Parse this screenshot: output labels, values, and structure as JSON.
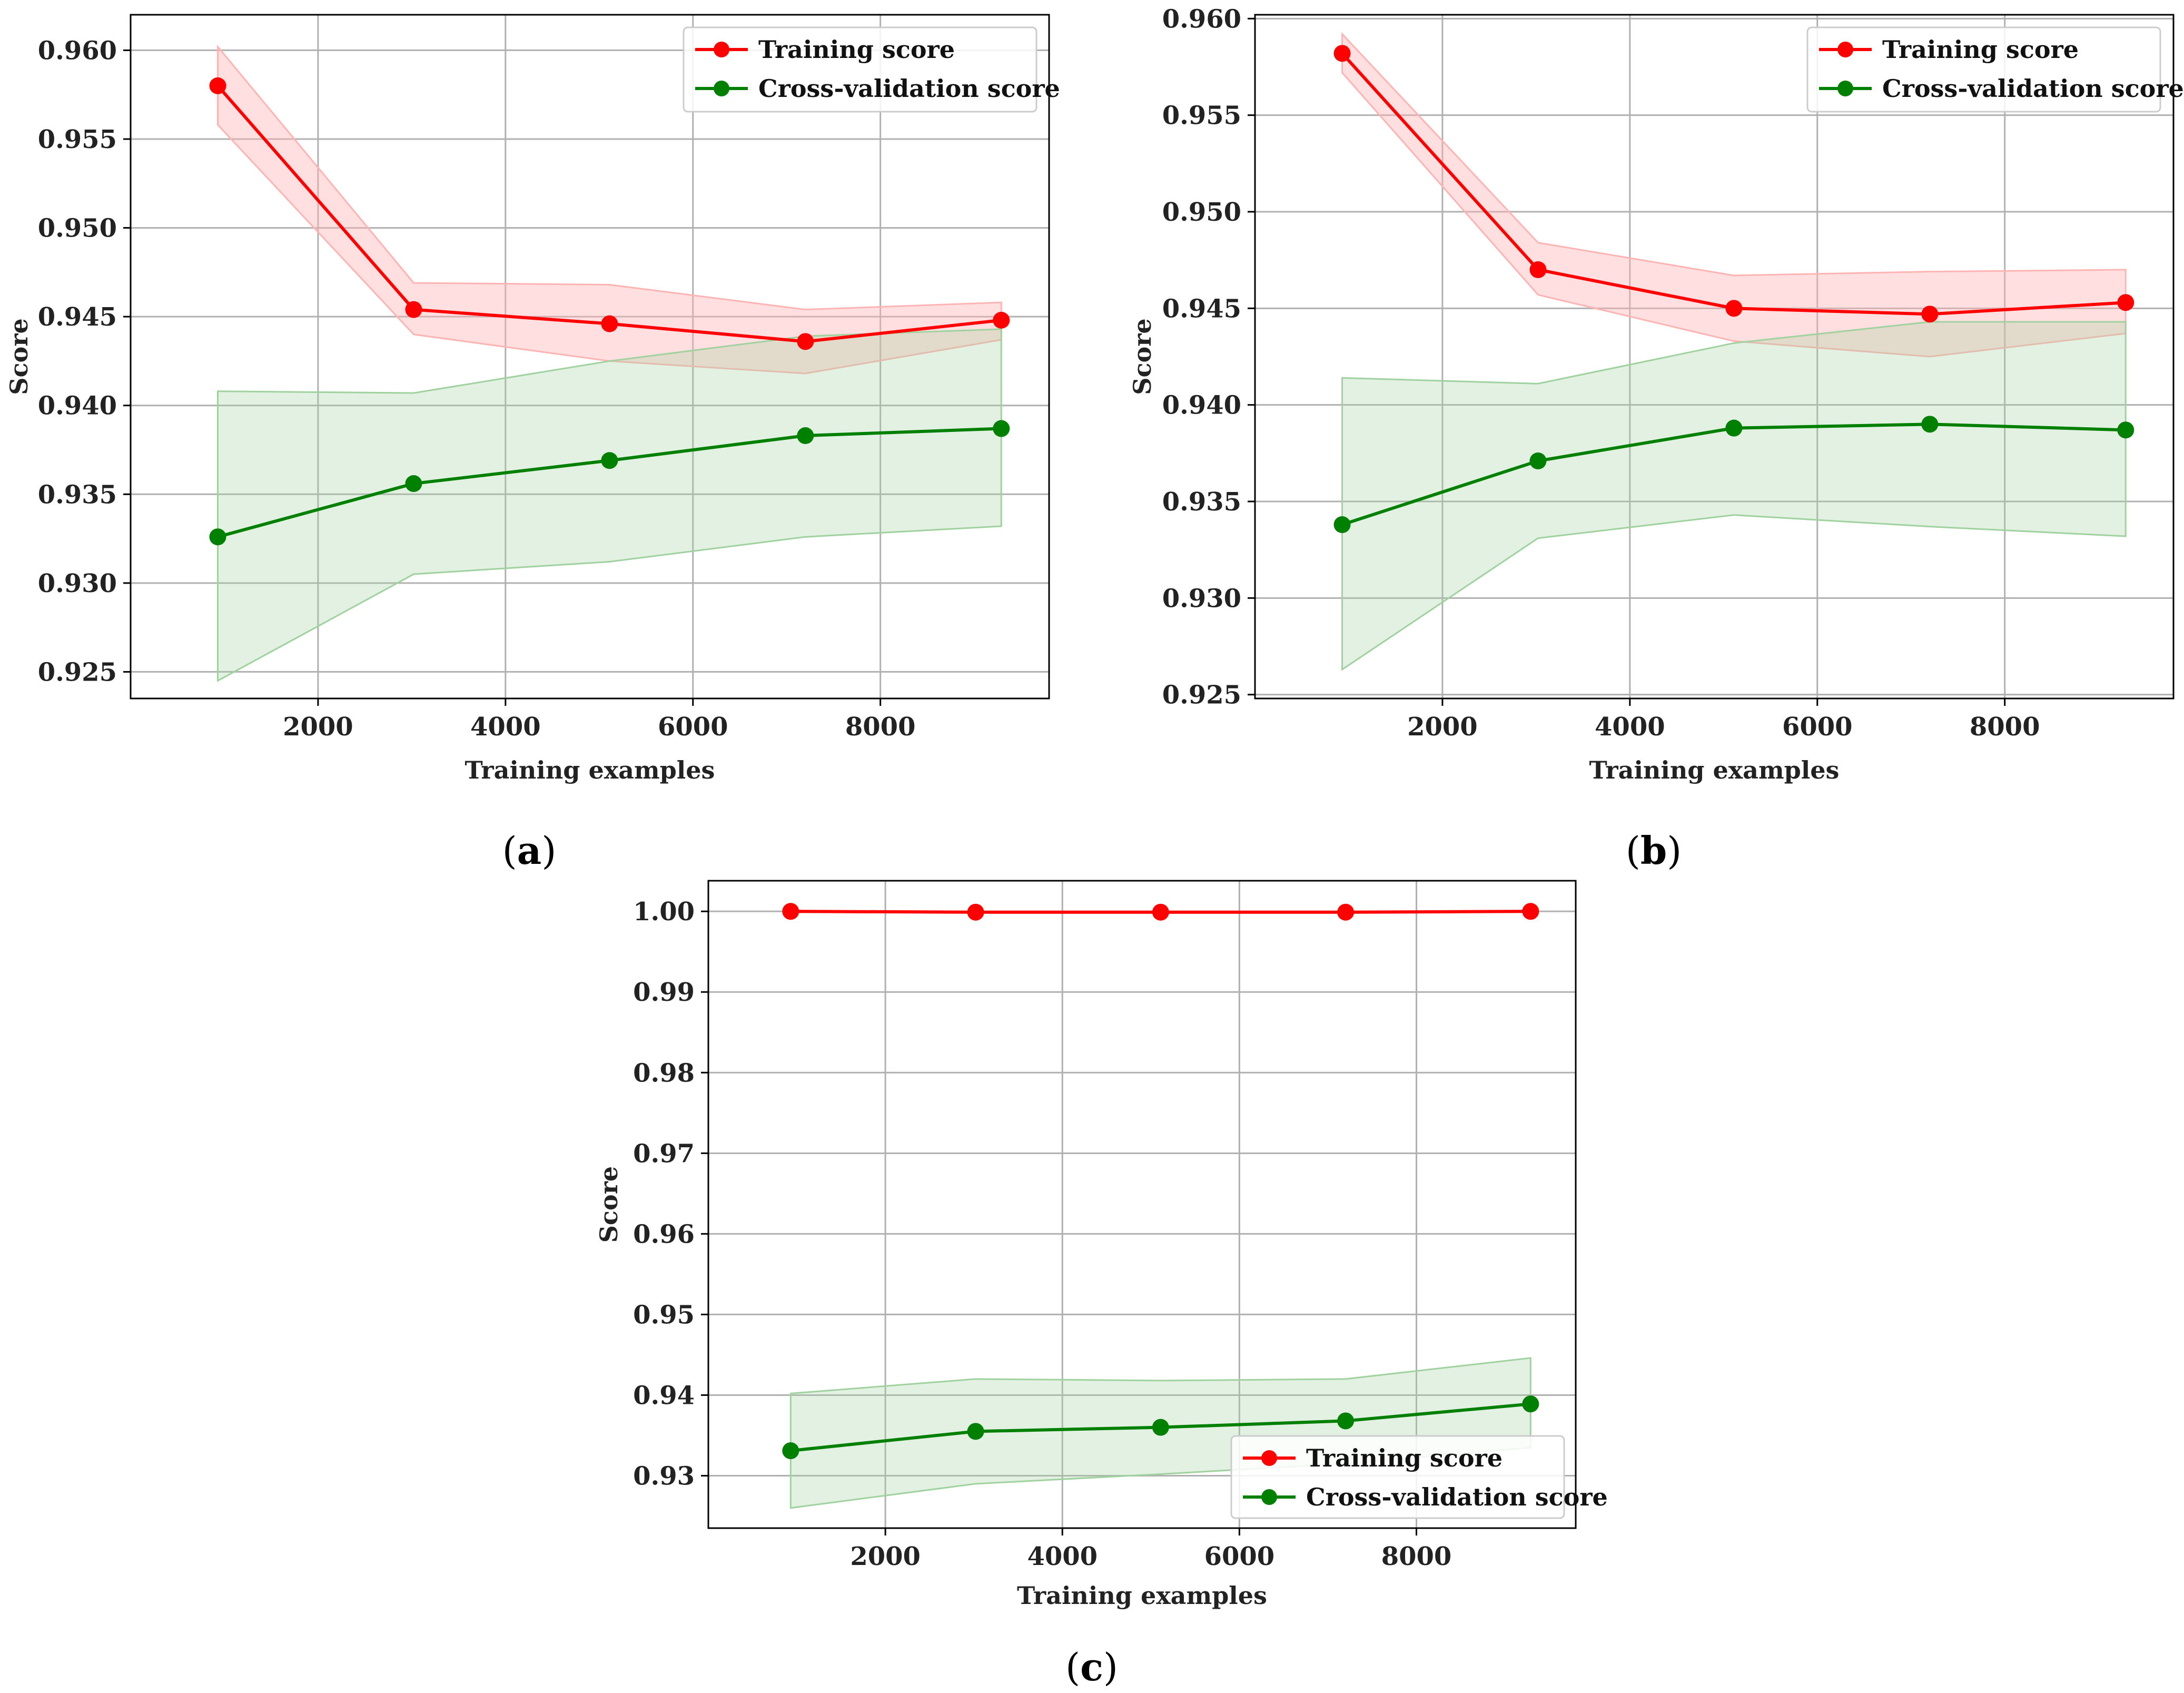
{
  "colors": {
    "training": "#ff0000",
    "training_fill": "#ffb3b3",
    "cv": "#008000",
    "cv_fill": "#9fd29f",
    "grid": "#b0b0b0",
    "axis": "#000000"
  },
  "chart_data": [
    {
      "type": "line",
      "panel": "a",
      "caption_letter": "a",
      "xlabel": "Training examples",
      "ylabel": "Score",
      "xlim": [
        0,
        9800
      ],
      "ylim": [
        0.9235,
        0.962
      ],
      "xticks": [
        2000,
        4000,
        6000,
        8000
      ],
      "xtick_labels": [
        "2000",
        "4000",
        "6000",
        "8000"
      ],
      "yticks": [
        0.925,
        0.93,
        0.935,
        0.94,
        0.945,
        0.95,
        0.955,
        0.96
      ],
      "ytick_labels": [
        "0.925",
        "0.930",
        "0.935",
        "0.940",
        "0.945",
        "0.950",
        "0.955",
        "0.960"
      ],
      "grid": true,
      "legend_position": "top-right",
      "x": [
        930,
        3020,
        5110,
        7200,
        9290
      ],
      "series": [
        {
          "name": "Training score",
          "key": "training",
          "values": [
            0.958,
            0.9454,
            0.9446,
            0.9436,
            0.9448
          ],
          "lower": [
            0.9558,
            0.944,
            0.9425,
            0.9418,
            0.9437
          ],
          "upper": [
            0.9602,
            0.9469,
            0.9468,
            0.9454,
            0.9458
          ]
        },
        {
          "name": "Cross-validation score",
          "key": "cv",
          "values": [
            0.9326,
            0.9356,
            0.9369,
            0.9383,
            0.9387
          ],
          "lower": [
            0.9245,
            0.9305,
            0.9312,
            0.9326,
            0.9332
          ],
          "upper": [
            0.9408,
            0.9407,
            0.9425,
            0.9439,
            0.9443
          ]
        }
      ]
    },
    {
      "type": "line",
      "panel": "b",
      "caption_letter": "b",
      "xlabel": "Training examples",
      "ylabel": "Score",
      "xlim": [
        0,
        9800
      ],
      "ylim": [
        0.9248,
        0.9602
      ],
      "xticks": [
        2000,
        4000,
        6000,
        8000
      ],
      "xtick_labels": [
        "2000",
        "4000",
        "6000",
        "8000"
      ],
      "yticks": [
        0.925,
        0.93,
        0.935,
        0.94,
        0.945,
        0.95,
        0.955,
        0.96
      ],
      "ytick_labels": [
        "0.925",
        "0.930",
        "0.935",
        "0.940",
        "0.945",
        "0.950",
        "0.955",
        "0.960"
      ],
      "grid": true,
      "legend_position": "top-right",
      "x": [
        930,
        3020,
        5110,
        7200,
        9290
      ],
      "series": [
        {
          "name": "Training score",
          "key": "training",
          "values": [
            0.9582,
            0.947,
            0.945,
            0.9447,
            0.9453
          ],
          "lower": [
            0.9572,
            0.9457,
            0.9433,
            0.9425,
            0.9437
          ],
          "upper": [
            0.9592,
            0.9484,
            0.9467,
            0.9469,
            0.947
          ]
        },
        {
          "name": "Cross-validation score",
          "key": "cv",
          "values": [
            0.9338,
            0.9371,
            0.9388,
            0.939,
            0.9387
          ],
          "lower": [
            0.9263,
            0.9331,
            0.9343,
            0.9337,
            0.9332
          ],
          "upper": [
            0.9414,
            0.9411,
            0.9432,
            0.9443,
            0.9443
          ]
        }
      ]
    },
    {
      "type": "line",
      "panel": "c",
      "caption_letter": "c",
      "xlabel": "Training examples",
      "ylabel": "Score",
      "xlim": [
        0,
        9800
      ],
      "ylim": [
        0.9235,
        1.0038
      ],
      "xticks": [
        2000,
        4000,
        6000,
        8000
      ],
      "xtick_labels": [
        "2000",
        "4000",
        "6000",
        "8000"
      ],
      "yticks": [
        0.93,
        0.94,
        0.95,
        0.96,
        0.97,
        0.98,
        0.99,
        1.0
      ],
      "ytick_labels": [
        "0.93",
        "0.94",
        "0.95",
        "0.96",
        "0.97",
        "0.98",
        "0.99",
        "1.00"
      ],
      "grid": true,
      "legend_position": "bottom-right",
      "x": [
        930,
        3020,
        5110,
        7200,
        9290
      ],
      "series": [
        {
          "name": "Training score",
          "key": "training",
          "values": [
            1.0,
            0.9999,
            0.9999,
            0.9999,
            1.0
          ],
          "lower": [
            1.0,
            0.9999,
            0.9999,
            0.9999,
            1.0
          ],
          "upper": [
            1.0,
            0.9999,
            0.9999,
            0.9999,
            1.0
          ]
        },
        {
          "name": "Cross-validation score",
          "key": "cv",
          "values": [
            0.9331,
            0.9355,
            0.936,
            0.9368,
            0.9389
          ],
          "lower": [
            0.926,
            0.929,
            0.9302,
            0.9315,
            0.9335
          ],
          "upper": [
            0.9402,
            0.942,
            0.9418,
            0.942,
            0.9446
          ]
        }
      ]
    }
  ]
}
